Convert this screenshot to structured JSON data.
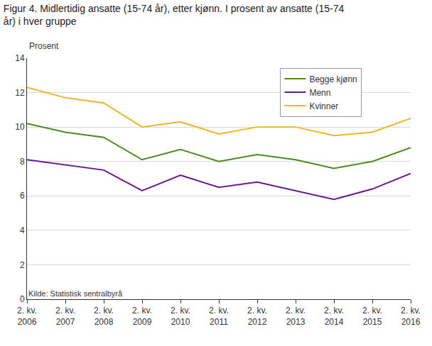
{
  "chart_data": {
    "type": "line",
    "title": "Figur 4. Midlertidig ansatte (15-74 år), etter kjønn. I prosent av ansatte (15-74 år) i hver gruppe",
    "y_label": "Prosent",
    "source": "Kilde: Statistisk sentralbyrå",
    "categories": [
      "2. kv. 2006",
      "2. kv. 2007",
      "2. kv. 2008",
      "2. kv. 2009",
      "2. kv. 2010",
      "2. kv. 2011",
      "2. kv. 2012",
      "2. kv. 2013",
      "2. kv. 2014",
      "2. kv. 2015",
      "2. kv. 2016"
    ],
    "series": [
      {
        "name": "Begge kjønn",
        "color": "#4b8b1f",
        "values": [
          10.2,
          9.7,
          9.4,
          8.1,
          8.7,
          8.0,
          8.4,
          8.1,
          7.6,
          8.0,
          8.8
        ]
      },
      {
        "name": "Menn",
        "color": "#6b1a8c",
        "values": [
          8.1,
          7.8,
          7.5,
          6.3,
          7.2,
          6.5,
          6.8,
          6.3,
          5.8,
          6.4,
          7.3
        ]
      },
      {
        "name": "Kvinner",
        "color": "#f0b429",
        "values": [
          12.3,
          11.7,
          11.4,
          10.0,
          10.3,
          9.6,
          10.0,
          10.0,
          9.5,
          9.7,
          10.5
        ]
      }
    ],
    "ylim": [
      0,
      14
    ],
    "yticks": [
      0,
      2,
      4,
      6,
      8,
      10,
      12,
      14
    ],
    "grid": true,
    "legend": "top-right"
  }
}
